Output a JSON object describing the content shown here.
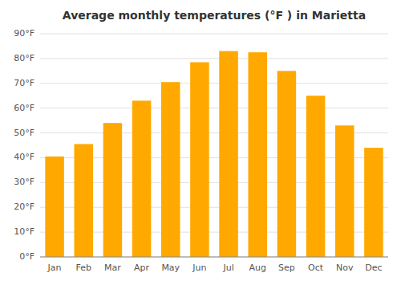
{
  "chart_data": {
    "type": "bar",
    "title": "Average monthly temperatures (°F ) in Marietta",
    "categories": [
      "Jan",
      "Feb",
      "Mar",
      "Apr",
      "May",
      "Jun",
      "Jul",
      "Aug",
      "Sep",
      "Oct",
      "Nov",
      "Dec"
    ],
    "values": [
      40.5,
      45.5,
      54.0,
      63.0,
      70.5,
      78.5,
      83.0,
      82.5,
      75.0,
      65.0,
      53.0,
      44.0
    ],
    "color": "#FFA800",
    "ylim": [
      0,
      90
    ],
    "yticks": [
      {
        "value": 0,
        "label": "0°F"
      },
      {
        "value": 10,
        "label": "10°F"
      },
      {
        "value": 20,
        "label": "20°F"
      },
      {
        "value": 30,
        "label": "30°F"
      },
      {
        "value": 40,
        "label": "40°F"
      },
      {
        "value": 50,
        "label": "50°F"
      },
      {
        "value": 60,
        "label": "60°F"
      },
      {
        "value": 70,
        "label": "70°F"
      },
      {
        "value": 80,
        "label": "80°F"
      },
      {
        "value": 90,
        "label": "90°F"
      }
    ],
    "grid": true
  }
}
